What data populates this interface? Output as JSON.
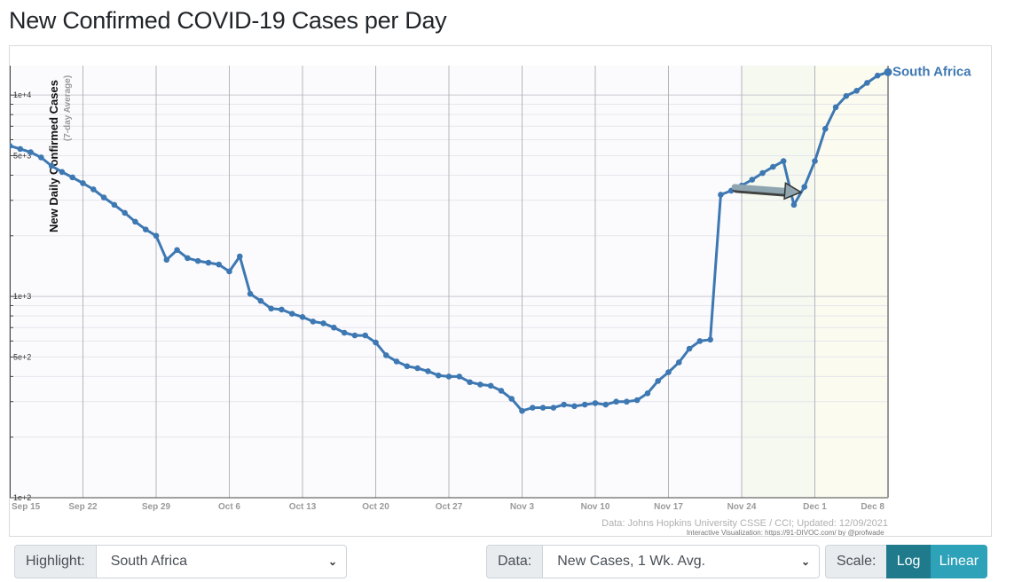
{
  "title": "New Confirmed COVID-19 Cases per Day",
  "controls": {
    "highlight_label": "Highlight:",
    "highlight_value": "South Africa",
    "data_label": "Data:",
    "data_value": "New Cases, 1 Wk. Avg.",
    "scale_label": "Scale:",
    "scale_options": [
      "Log",
      "Linear"
    ],
    "scale_selected": "Log"
  },
  "colors": {
    "series": "#3e78b2",
    "arrow": "#8fa5b0",
    "scale_active": "#1f7a8c",
    "scale_inactive": "#2ea2b8",
    "grid": "#cfcfd6",
    "plot_bg": "#fbfbfe",
    "shade_1": "#f5f9f0",
    "shade_2": "#fbfbf0"
  },
  "chart_data": {
    "type": "line",
    "title": "",
    "ylabel": "New Daily Confirmed Cases",
    "ylabel_sub": "(7-day Average)",
    "xlabel": "",
    "yscale": "log",
    "ylim": [
      100,
      14000
    ],
    "y_ticks": [
      {
        "value": 100,
        "label": "1e+2"
      },
      {
        "value": 500,
        "label": "5e+2"
      },
      {
        "value": 1000,
        "label": "1e+3"
      },
      {
        "value": 5000,
        "label": "5e+3"
      },
      {
        "value": 10000,
        "label": "1e+4"
      }
    ],
    "x_start": "2021-09-15",
    "x_end": "2021-12-08",
    "x_ticks": [
      {
        "date": "2021-09-15",
        "label": "Sep 15"
      },
      {
        "date": "2021-09-22",
        "label": "Sep 22"
      },
      {
        "date": "2021-09-29",
        "label": "Sep 29"
      },
      {
        "date": "2021-10-06",
        "label": "Oct 6"
      },
      {
        "date": "2021-10-13",
        "label": "Oct 13"
      },
      {
        "date": "2021-10-20",
        "label": "Oct 20"
      },
      {
        "date": "2021-10-27",
        "label": "Oct 27"
      },
      {
        "date": "2021-11-03",
        "label": "Nov 3"
      },
      {
        "date": "2021-11-10",
        "label": "Nov 10"
      },
      {
        "date": "2021-11-17",
        "label": "Nov 17"
      },
      {
        "date": "2021-11-24",
        "label": "Nov 24"
      },
      {
        "date": "2021-12-01",
        "label": "Dec 1"
      },
      {
        "date": "2021-12-08",
        "label": "Dec 8"
      }
    ],
    "shaded_ranges": [
      {
        "from": "2021-11-24",
        "to": "2021-12-01"
      },
      {
        "from": "2021-12-01",
        "to": "2021-12-08"
      }
    ],
    "series": [
      {
        "name": "South Africa",
        "x": [
          "2021-09-15",
          "2021-09-16",
          "2021-09-17",
          "2021-09-18",
          "2021-09-19",
          "2021-09-20",
          "2021-09-21",
          "2021-09-22",
          "2021-09-23",
          "2021-09-24",
          "2021-09-25",
          "2021-09-26",
          "2021-09-27",
          "2021-09-28",
          "2021-09-29",
          "2021-09-30",
          "2021-10-01",
          "2021-10-02",
          "2021-10-03",
          "2021-10-04",
          "2021-10-05",
          "2021-10-06",
          "2021-10-07",
          "2021-10-08",
          "2021-10-09",
          "2021-10-10",
          "2021-10-11",
          "2021-10-12",
          "2021-10-13",
          "2021-10-14",
          "2021-10-15",
          "2021-10-16",
          "2021-10-17",
          "2021-10-18",
          "2021-10-19",
          "2021-10-20",
          "2021-10-21",
          "2021-10-22",
          "2021-10-23",
          "2021-10-24",
          "2021-10-25",
          "2021-10-26",
          "2021-10-27",
          "2021-10-28",
          "2021-10-29",
          "2021-10-30",
          "2021-10-31",
          "2021-11-01",
          "2021-11-02",
          "2021-11-03",
          "2021-11-04",
          "2021-11-05",
          "2021-11-06",
          "2021-11-07",
          "2021-11-08",
          "2021-11-09",
          "2021-11-10",
          "2021-11-11",
          "2021-11-12",
          "2021-11-13",
          "2021-11-14",
          "2021-11-15",
          "2021-11-16",
          "2021-11-17",
          "2021-11-18",
          "2021-11-19",
          "2021-11-20",
          "2021-11-21",
          "2021-11-22",
          "2021-11-23",
          "2021-11-24",
          "2021-11-25",
          "2021-11-26",
          "2021-11-27",
          "2021-11-28",
          "2021-11-29",
          "2021-11-30",
          "2021-12-01",
          "2021-12-02",
          "2021-12-03",
          "2021-12-04",
          "2021-12-05",
          "2021-12-06",
          "2021-12-07",
          "2021-12-08"
        ],
        "y": [
          5600,
          5400,
          5200,
          4900,
          4450,
          4150,
          3900,
          3650,
          3400,
          3100,
          2850,
          2600,
          2350,
          2150,
          2000,
          1520,
          1700,
          1550,
          1500,
          1470,
          1440,
          1330,
          1580,
          1030,
          950,
          870,
          860,
          820,
          790,
          750,
          735,
          700,
          660,
          640,
          640,
          590,
          510,
          475,
          450,
          440,
          425,
          405,
          400,
          400,
          375,
          365,
          360,
          340,
          310,
          270,
          280,
          280,
          280,
          290,
          285,
          290,
          295,
          290,
          300,
          300,
          305,
          330,
          380,
          420,
          470,
          550,
          600,
          610,
          3200,
          3350,
          3550,
          3800,
          4100,
          4400,
          4700,
          2850,
          3500,
          4700,
          6800,
          8700,
          9900,
          10500,
          11500,
          12500,
          13000
        ]
      }
    ],
    "annotations": [
      {
        "text": "Data: Johns Hopkins University CSSE / CCI; Updated: 12/09/2021"
      },
      {
        "text": "Interactive Visualization: https://91-DIVOC.com/ by @profwade_"
      }
    ]
  }
}
